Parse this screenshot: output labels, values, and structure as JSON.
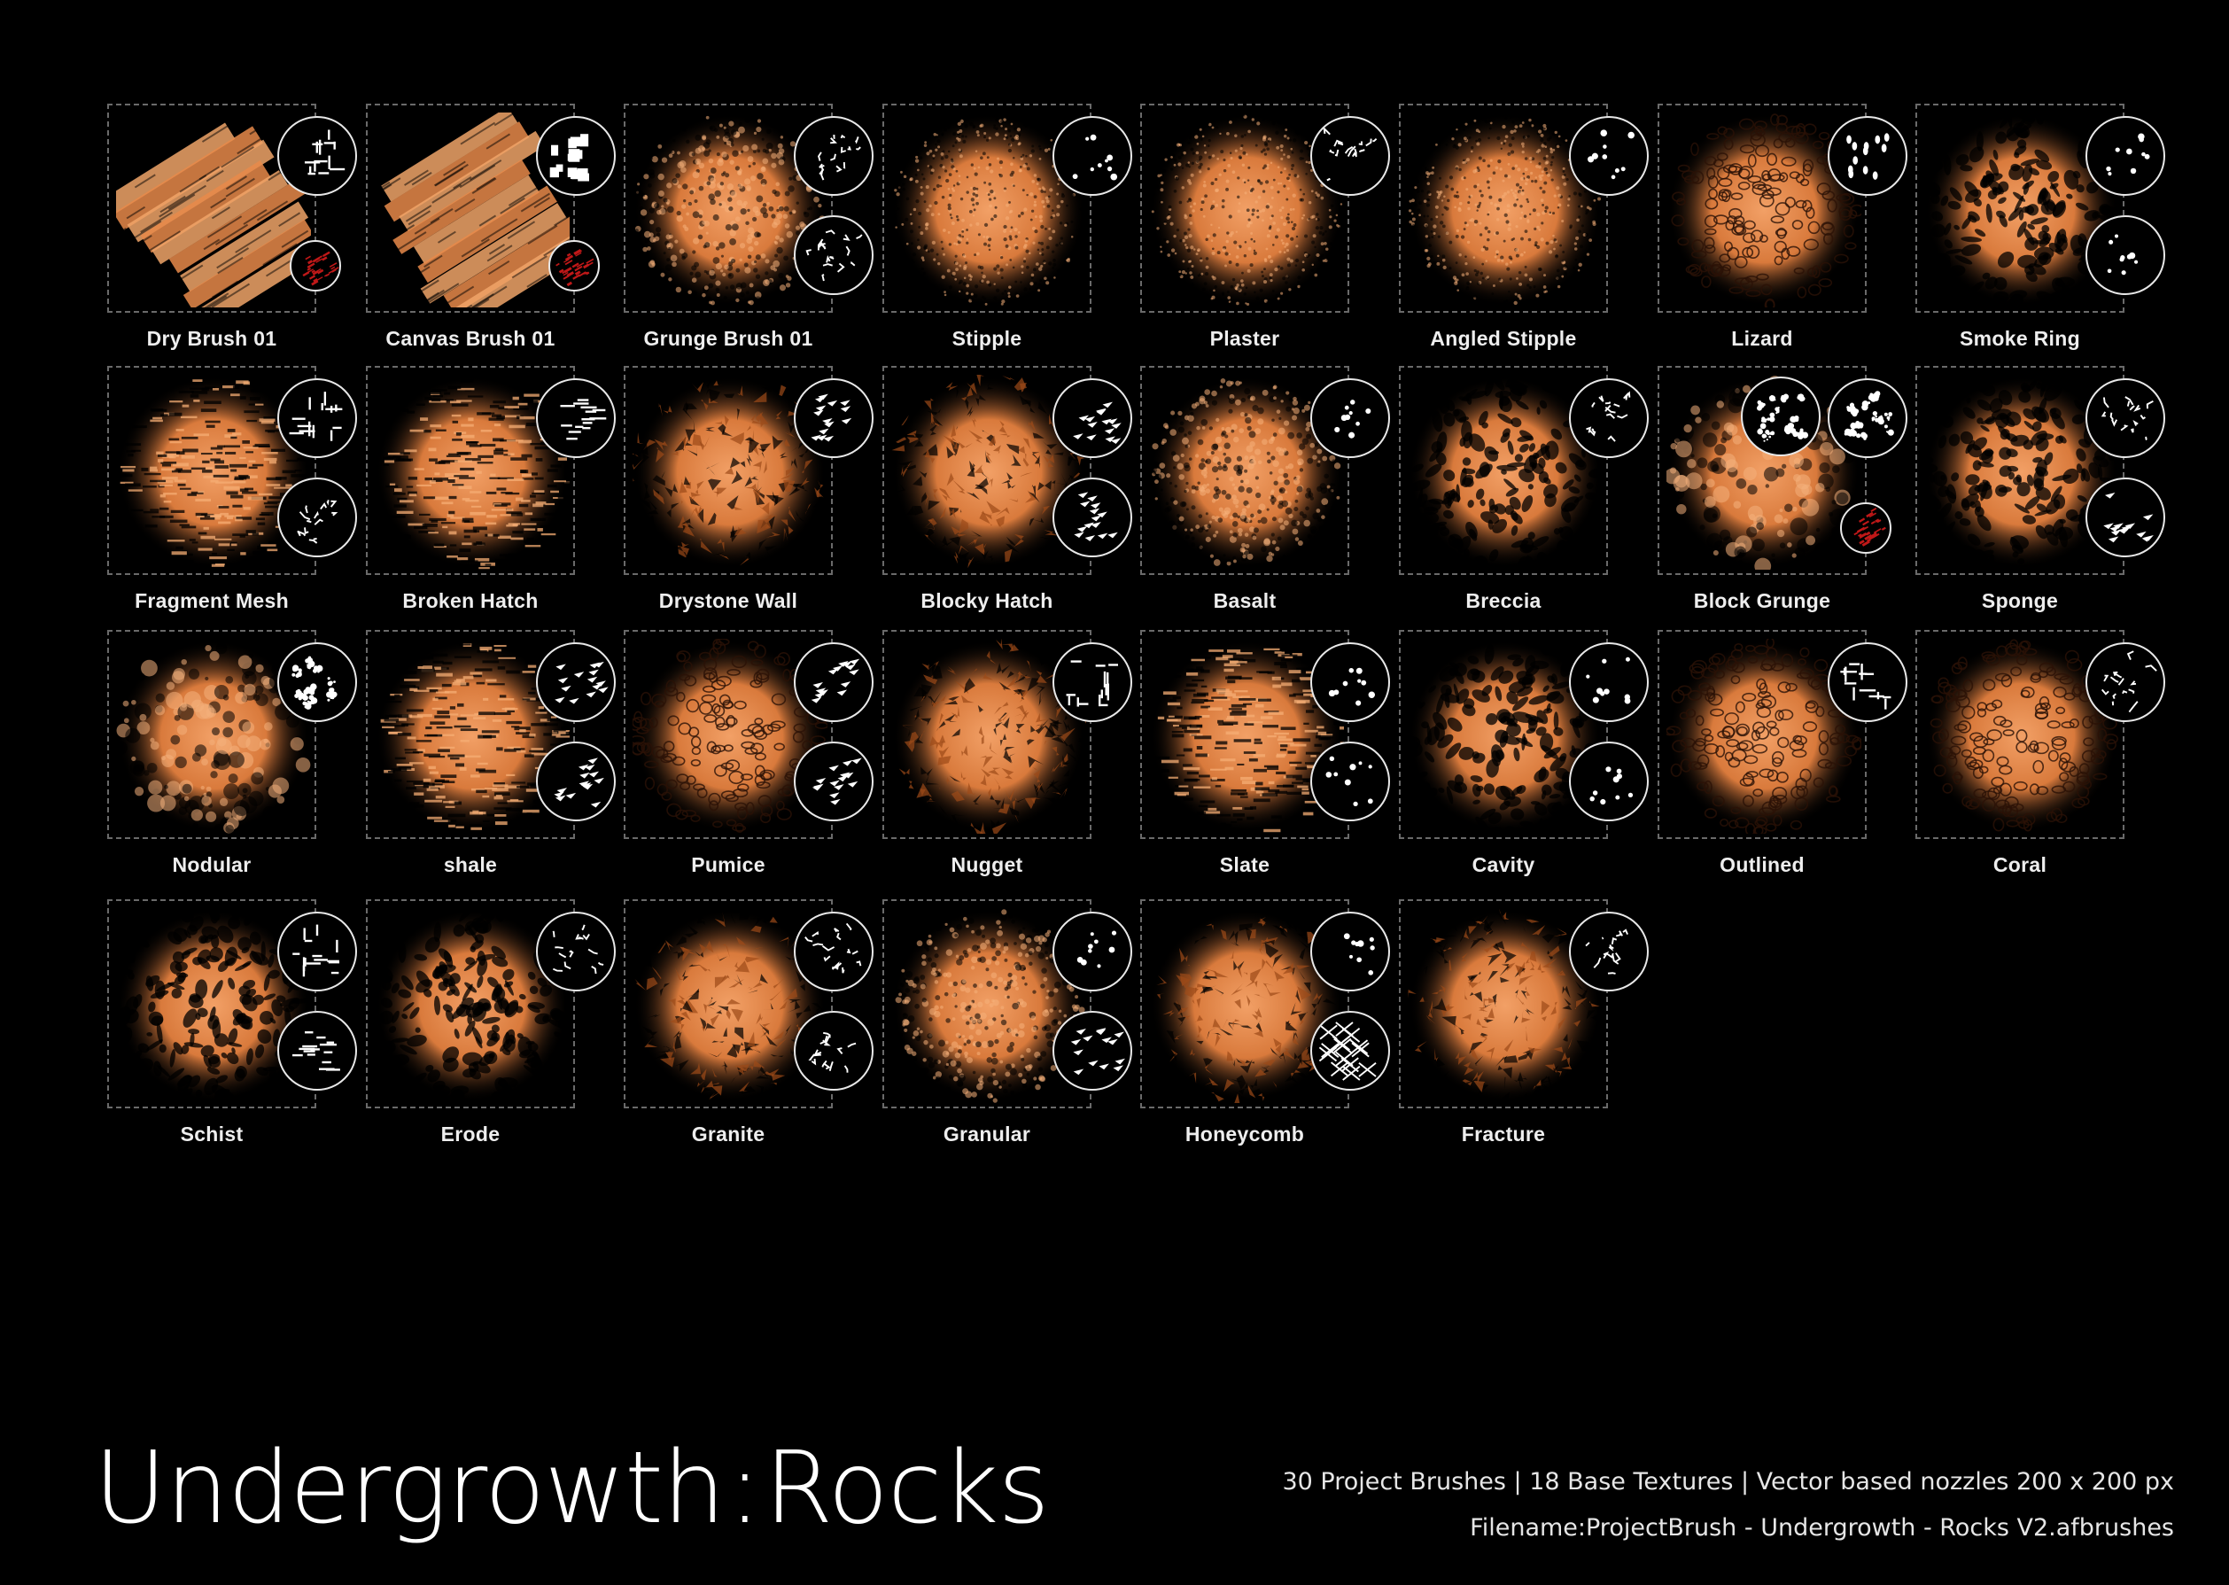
{
  "title": {
    "part1": "Undergrowth",
    "sep": ":",
    "part2": "Rocks"
  },
  "info": {
    "line1": "30 Project Brushes | 18 Base Textures | Vector based nozzles 200 x 200 px",
    "line2": "Filename:ProjectBrush - Undergrowth - Rocks V2.afbrushes"
  },
  "colors": {
    "background": "#000000",
    "paint": "#e8894a",
    "paint_dark": "#9c4a18",
    "accent_red": "#c01818",
    "frame": "#6a6a6a"
  },
  "brushes": [
    {
      "name": "Dry Brush 01",
      "style": "strokes",
      "nozzles": [
        "marks",
        "red"
      ]
    },
    {
      "name": "Canvas Brush 01",
      "style": "strokes",
      "nozzles": [
        "blocks",
        "red"
      ]
    },
    {
      "name": "Grunge Brush 01",
      "style": "speckle",
      "nozzles": [
        "cracks",
        "cracks"
      ]
    },
    {
      "name": "Stipple",
      "style": "fine",
      "nozzles": [
        "dots"
      ]
    },
    {
      "name": "Plaster",
      "style": "fine",
      "nozzles": [
        "scribble"
      ]
    },
    {
      "name": "Angled Stipple",
      "style": "fine",
      "nozzles": [
        "dots"
      ]
    },
    {
      "name": "Lizard",
      "style": "cells",
      "nozzles": [
        "ovals"
      ]
    },
    {
      "name": "Smoke Ring",
      "style": "blobs",
      "nozzles": [
        "dots",
        "dots"
      ]
    },
    {
      "name": "Fragment Mesh",
      "style": "hatch",
      "nozzles": [
        "marks",
        "cracks"
      ]
    },
    {
      "name": "Broken Hatch",
      "style": "hatch",
      "nozzles": [
        "dashes"
      ]
    },
    {
      "name": "Drystone Wall",
      "style": "chunks",
      "nozzles": [
        "shards"
      ]
    },
    {
      "name": "Blocky Hatch",
      "style": "chunks",
      "nozzles": [
        "shards",
        "shards"
      ]
    },
    {
      "name": "Basalt",
      "style": "speckle",
      "nozzles": [
        "dots"
      ]
    },
    {
      "name": "Breccia",
      "style": "blobs",
      "nozzles": [
        "cracks"
      ]
    },
    {
      "name": "Block Grunge",
      "style": "grunge",
      "nozzles": [
        "grunge",
        "grunge",
        "red"
      ]
    },
    {
      "name": "Sponge",
      "style": "blobs",
      "nozzles": [
        "scribble",
        "shards"
      ]
    },
    {
      "name": "Nodular",
      "style": "grunge",
      "nozzles": [
        "grunge"
      ]
    },
    {
      "name": "shale",
      "style": "hatch",
      "nozzles": [
        "shards",
        "shards"
      ]
    },
    {
      "name": "Pumice",
      "style": "cells",
      "nozzles": [
        "shards",
        "shards"
      ]
    },
    {
      "name": "Nugget",
      "style": "chunks",
      "nozzles": [
        "marks"
      ]
    },
    {
      "name": "Slate",
      "style": "hatch",
      "nozzles": [
        "dots",
        "dots"
      ]
    },
    {
      "name": "Cavity",
      "style": "blobs",
      "nozzles": [
        "dots",
        "dots"
      ]
    },
    {
      "name": "Outlined",
      "style": "cells",
      "nozzles": [
        "marks"
      ]
    },
    {
      "name": "Coral",
      "style": "cells",
      "nozzles": [
        "cracks"
      ]
    },
    {
      "name": "Schist",
      "style": "blobs",
      "nozzles": [
        "marks",
        "dashes"
      ]
    },
    {
      "name": "Erode",
      "style": "blobs",
      "nozzles": [
        "cracks"
      ]
    },
    {
      "name": "Granite",
      "style": "chunks",
      "nozzles": [
        "cracks",
        "scribble"
      ]
    },
    {
      "name": "Granular",
      "style": "speckle",
      "nozzles": [
        "dots",
        "shards"
      ]
    },
    {
      "name": "Honeycomb",
      "style": "chunks",
      "nozzles": [
        "dots",
        "mesh"
      ]
    },
    {
      "name": "Fracture",
      "style": "chunks",
      "nozzles": [
        "scribble"
      ]
    }
  ]
}
